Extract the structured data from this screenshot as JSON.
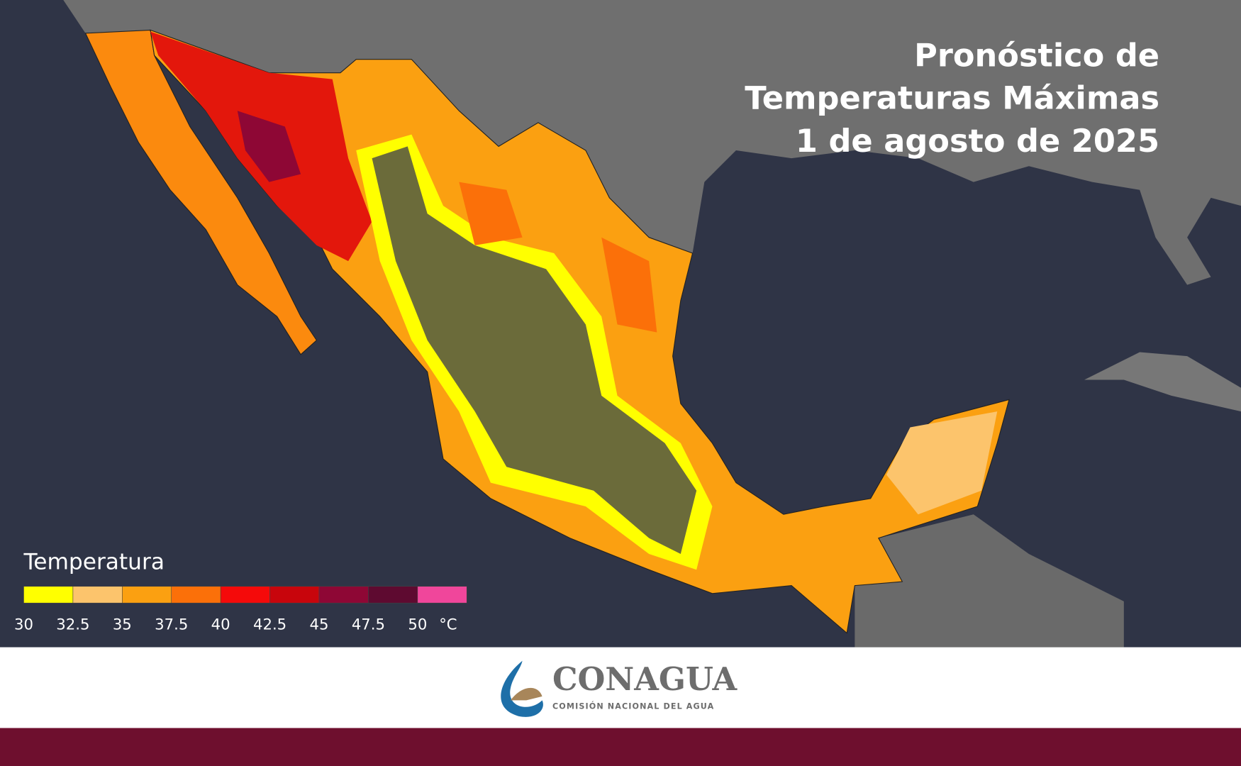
{
  "title": [
    "Pronóstico de",
    "Temperaturas Máximas",
    "1 de agosto de 2025"
  ],
  "legend": {
    "title": "Temperatura",
    "colors": [
      "#ffff00",
      "#fcc46c",
      "#fba011",
      "#fb7009",
      "#f50a0a",
      "#c8050c",
      "#8e0735",
      "#5e0a30",
      "#f0469b"
    ],
    "ticks": [
      30,
      32.5,
      35,
      37.5,
      40,
      42.5,
      45,
      47.5,
      50
    ],
    "unit": "°C"
  },
  "logo": {
    "name": "CONAGUA",
    "subtitle": "COMISIÓN NACIONAL DEL AGUA"
  }
}
